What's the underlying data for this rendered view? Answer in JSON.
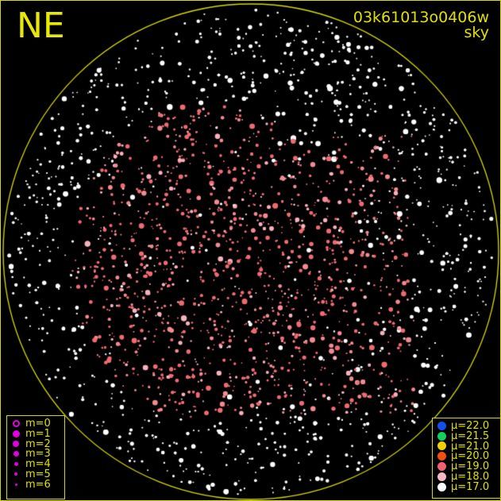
{
  "header": {
    "direction": "NE",
    "image_id": "03k61013o0406w",
    "mode": "sky"
  },
  "colors": {
    "frame": "#d8d800",
    "horizon_circle": "#d8d800",
    "text": "#e0e000",
    "magnitude_symbol": "#e000e0"
  },
  "magnitude_legend": [
    {
      "label": "m=0",
      "symbol": "open-circle"
    },
    {
      "label": "m=1",
      "symbol": "filled-circle"
    },
    {
      "label": "m=2",
      "symbol": "filled-circle"
    },
    {
      "label": "m=3",
      "symbol": "filled-circle"
    },
    {
      "label": "m=4",
      "symbol": "filled-circle"
    },
    {
      "label": "m=5",
      "symbol": "filled-circle"
    },
    {
      "label": "m=6",
      "symbol": "filled-circle"
    }
  ],
  "sky_brightness_legend": [
    {
      "label": "μ=22.0",
      "color": "#1050f0"
    },
    {
      "label": "μ=21.5",
      "color": "#10d060"
    },
    {
      "label": "μ=21.0",
      "color": "#f0d000"
    },
    {
      "label": "μ=20.0",
      "color": "#f05010"
    },
    {
      "label": "μ=19.0",
      "color": "#f06070"
    },
    {
      "label": "μ=18.0",
      "color": "#f8b8c8"
    },
    {
      "label": "μ=17.0",
      "color": "#ffffff"
    }
  ]
}
